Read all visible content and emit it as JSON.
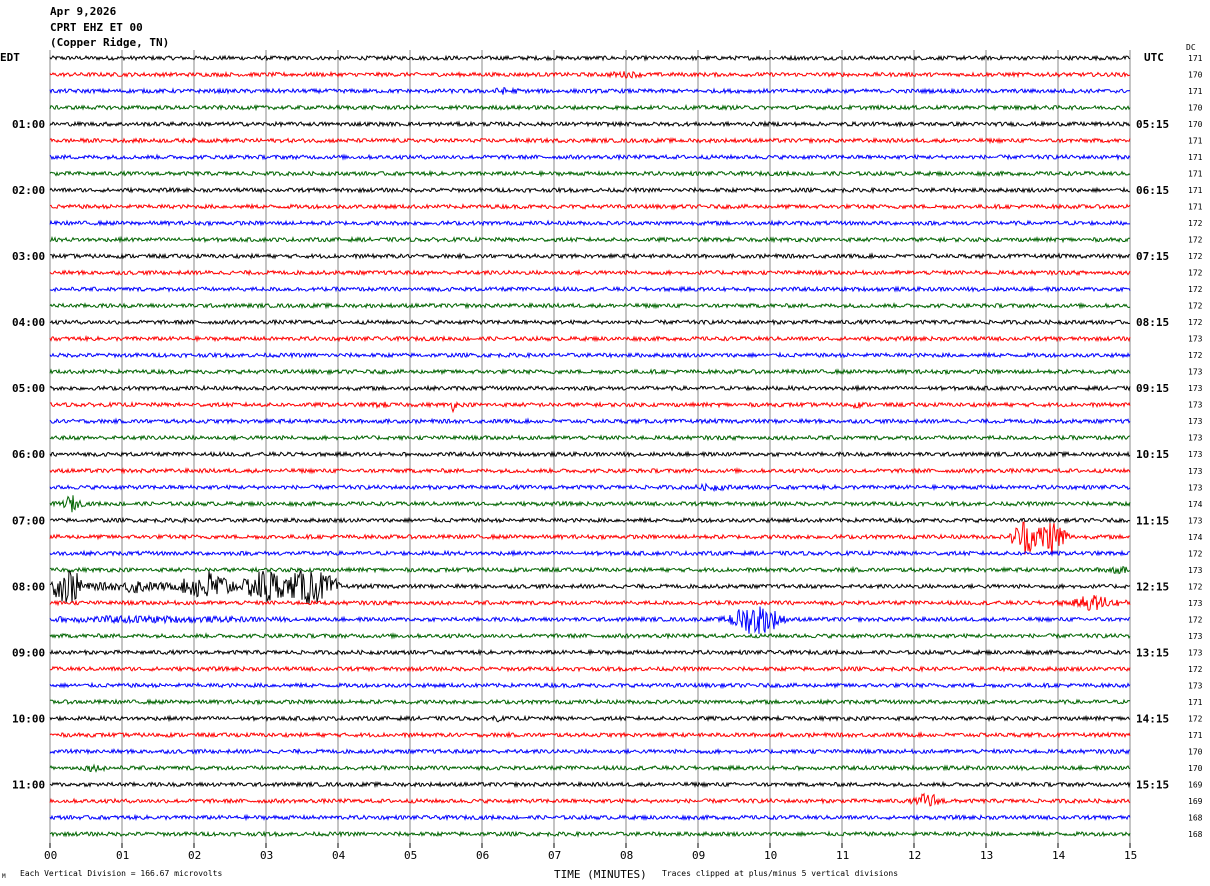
{
  "header": {
    "date": "Apr 9,2026",
    "station": "CPRT EHZ ET 00",
    "location": "(Copper Ridge, TN)",
    "left_tz": "EDT",
    "right_tz": "UTC",
    "dc_label": "DC"
  },
  "footer": {
    "scale_note": "Each Vertical Division =  166.67 microvolts",
    "clip_note": "Traces clipped at plus/minus 5 vertical divisions",
    "corner_mark": "M"
  },
  "chart_data": {
    "type": "line",
    "subtype": "helicorder",
    "xlabel": "TIME (MINUTES)",
    "xlim": [
      0,
      15
    ],
    "x_ticks": [
      "00",
      "01",
      "02",
      "03",
      "04",
      "05",
      "06",
      "07",
      "08",
      "09",
      "10",
      "11",
      "12",
      "13",
      "14",
      "15"
    ],
    "rows_per_hour": 4,
    "row_minutes": 15,
    "trace_colors": [
      "#000000",
      "#ff0000",
      "#0000ff",
      "#006400"
    ],
    "left_hour_labels": [
      "01:00",
      "02:00",
      "03:00",
      "04:00",
      "05:00",
      "06:00",
      "07:00",
      "08:00",
      "09:00",
      "10:00",
      "11:00"
    ],
    "right_hour_labels": [
      "05:15",
      "06:15",
      "07:15",
      "08:15",
      "09:15",
      "10:15",
      "11:15",
      "12:15",
      "13:15",
      "14:15",
      "15:15"
    ],
    "dc_offsets": [
      171,
      170,
      171,
      170,
      170,
      171,
      171,
      171,
      171,
      171,
      172,
      172,
      172,
      172,
      172,
      172,
      172,
      173,
      172,
      173,
      173,
      173,
      173,
      173,
      173,
      173,
      173,
      174,
      173,
      174,
      172,
      173,
      172,
      173,
      172,
      173,
      173,
      172,
      173,
      171,
      172,
      171,
      170,
      170,
      169,
      169,
      168,
      168
    ],
    "events": [
      {
        "row": 1,
        "minute": 8.0,
        "amplitude": 0.8,
        "duration": 0.3
      },
      {
        "row": 2,
        "minute": 6.3,
        "amplitude": 0.8,
        "duration": 0.3
      },
      {
        "row": 21,
        "minute": 4.6,
        "amplitude": 0.7,
        "duration": 0.15
      },
      {
        "row": 21,
        "minute": 5.6,
        "amplitude": 1.2,
        "duration": 0.1
      },
      {
        "row": 21,
        "minute": 11.2,
        "amplitude": 0.6,
        "duration": 0.15
      },
      {
        "row": 26,
        "minute": 9.2,
        "amplitude": 0.9,
        "duration": 0.3
      },
      {
        "row": 27,
        "minute": 0.3,
        "amplitude": 1.8,
        "duration": 0.2
      },
      {
        "row": 29,
        "minute": 13.55,
        "amplitude": 5,
        "duration": 0.25
      },
      {
        "row": 29,
        "minute": 13.9,
        "amplitude": 5,
        "duration": 0.3
      },
      {
        "row": 31,
        "minute": 14.8,
        "amplitude": 1.0,
        "duration": 0.3
      },
      {
        "row": 32,
        "minute": 0.25,
        "amplitude": 5,
        "duration": 0.3
      },
      {
        "row": 32,
        "minute": 2.2,
        "amplitude": 4,
        "duration": 0.5
      },
      {
        "row": 32,
        "minute": 3.0,
        "amplitude": 5,
        "duration": 0.4
      },
      {
        "row": 32,
        "minute": 3.6,
        "amplitude": 5,
        "duration": 0.5
      },
      {
        "row": 32,
        "minute": 1.2,
        "amplitude": 1.2,
        "duration": 1.5
      },
      {
        "row": 33,
        "minute": 14.5,
        "amplitude": 1.5,
        "duration": 0.6
      },
      {
        "row": 34,
        "minute": 9.8,
        "amplitude": 4,
        "duration": 0.5
      },
      {
        "row": 34,
        "minute": 1.2,
        "amplitude": 0.9,
        "duration": 2.4
      },
      {
        "row": 40,
        "minute": 6.2,
        "amplitude": 0.9,
        "duration": 0.1
      },
      {
        "row": 43,
        "minute": 0.6,
        "amplitude": 0.9,
        "duration": 0.2
      },
      {
        "row": 45,
        "minute": 12.2,
        "amplitude": 1.6,
        "duration": 0.3
      }
    ]
  }
}
